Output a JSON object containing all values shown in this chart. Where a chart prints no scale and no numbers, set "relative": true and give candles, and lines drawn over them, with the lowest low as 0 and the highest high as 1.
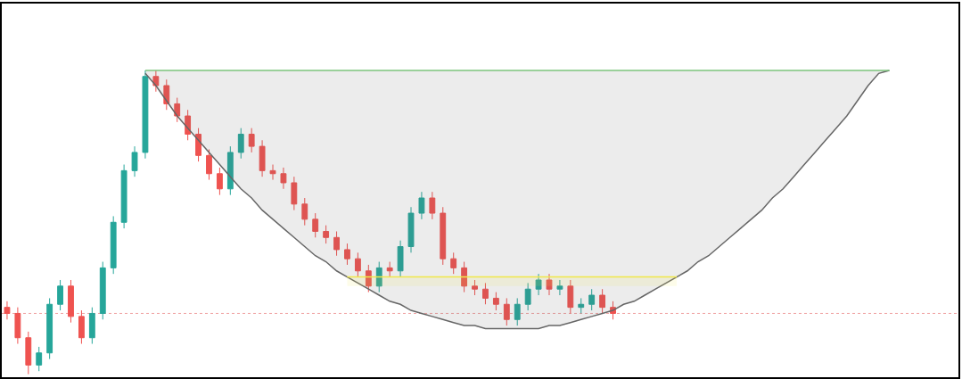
{
  "chart_data": {
    "type": "candlestick",
    "relative": true,
    "grid": false,
    "categories": [
      null,
      null,
      null,
      null,
      null,
      null,
      null,
      null,
      null,
      null,
      null,
      null,
      null,
      null,
      null,
      null,
      null,
      null,
      null,
      null,
      null,
      null,
      null,
      null,
      null,
      null,
      null,
      null,
      null,
      null,
      null,
      null,
      null,
      null,
      null,
      null,
      null,
      null,
      null,
      null,
      null,
      null,
      null,
      null,
      null,
      null,
      null,
      null,
      null,
      null,
      null,
      null,
      null,
      null,
      null,
      null,
      null,
      null,
      null,
      null,
      null,
      null,
      null,
      null,
      null,
      null,
      null,
      null,
      null,
      null,
      null,
      null,
      null,
      null,
      null,
      null,
      null,
      null,
      null,
      null,
      null,
      null,
      null,
      null,
      null,
      null,
      null,
      null,
      null,
      null
    ],
    "ohlc": [
      [
        0.22,
        0.24,
        0.18,
        0.2
      ],
      [
        0.2,
        0.22,
        0.1,
        0.12
      ],
      [
        0.12,
        0.14,
        0.0,
        0.03
      ],
      [
        0.03,
        0.09,
        0.01,
        0.07
      ],
      [
        0.07,
        0.25,
        0.05,
        0.23
      ],
      [
        0.23,
        0.31,
        0.21,
        0.29
      ],
      [
        0.29,
        0.31,
        0.17,
        0.19
      ],
      [
        0.19,
        0.21,
        0.1,
        0.12
      ],
      [
        0.12,
        0.22,
        0.1,
        0.2
      ],
      [
        0.2,
        0.37,
        0.18,
        0.35
      ],
      [
        0.35,
        0.52,
        0.33,
        0.5
      ],
      [
        0.5,
        0.69,
        0.48,
        0.67
      ],
      [
        0.67,
        0.75,
        0.65,
        0.73
      ],
      [
        0.73,
        1.0,
        0.71,
        0.98
      ],
      [
        0.98,
        1.0,
        0.93,
        0.95
      ],
      [
        0.95,
        0.97,
        0.87,
        0.89
      ],
      [
        0.89,
        0.91,
        0.83,
        0.85
      ],
      [
        0.85,
        0.87,
        0.77,
        0.79
      ],
      [
        0.79,
        0.81,
        0.7,
        0.72
      ],
      [
        0.72,
        0.74,
        0.64,
        0.66
      ],
      [
        0.66,
        0.68,
        0.59,
        0.61
      ],
      [
        0.61,
        0.75,
        0.59,
        0.73
      ],
      [
        0.73,
        0.81,
        0.71,
        0.79
      ],
      [
        0.79,
        0.81,
        0.73,
        0.75
      ],
      [
        0.75,
        0.77,
        0.65,
        0.67
      ],
      [
        0.67,
        0.69,
        0.64,
        0.66
      ],
      [
        0.66,
        0.68,
        0.61,
        0.63
      ],
      [
        0.63,
        0.65,
        0.54,
        0.56
      ],
      [
        0.56,
        0.58,
        0.49,
        0.51
      ],
      [
        0.51,
        0.53,
        0.45,
        0.47
      ],
      [
        0.47,
        0.49,
        0.43,
        0.45
      ],
      [
        0.45,
        0.47,
        0.39,
        0.41
      ],
      [
        0.41,
        0.43,
        0.36,
        0.38
      ],
      [
        0.38,
        0.4,
        0.32,
        0.34
      ],
      [
        0.34,
        0.36,
        0.27,
        0.29
      ],
      [
        0.29,
        0.37,
        0.27,
        0.35
      ],
      [
        0.35,
        0.37,
        0.32,
        0.34
      ],
      [
        0.34,
        0.44,
        0.32,
        0.42
      ],
      [
        0.42,
        0.55,
        0.4,
        0.53
      ],
      [
        0.53,
        0.6,
        0.51,
        0.58
      ],
      [
        0.58,
        0.6,
        0.51,
        0.53
      ],
      [
        0.53,
        0.55,
        0.36,
        0.38
      ],
      [
        0.38,
        0.4,
        0.33,
        0.35
      ],
      [
        0.35,
        0.37,
        0.27,
        0.29
      ],
      [
        0.29,
        0.31,
        0.26,
        0.28
      ],
      [
        0.28,
        0.3,
        0.23,
        0.25
      ],
      [
        0.25,
        0.27,
        0.21,
        0.23
      ],
      [
        0.23,
        0.25,
        0.16,
        0.18
      ],
      [
        0.18,
        0.25,
        0.16,
        0.23
      ],
      [
        0.23,
        0.3,
        0.21,
        0.28
      ],
      [
        0.28,
        0.33,
        0.26,
        0.31
      ],
      [
        0.31,
        0.33,
        0.26,
        0.28
      ],
      [
        0.28,
        0.31,
        0.26,
        0.29
      ],
      [
        0.29,
        0.31,
        0.2,
        0.22
      ],
      [
        0.22,
        0.25,
        0.2,
        0.23
      ],
      [
        0.23,
        0.28,
        0.21,
        0.26
      ],
      [
        0.26,
        0.28,
        0.2,
        0.22
      ],
      [
        0.22,
        0.24,
        0.18,
        0.2
      ],
      null,
      null,
      null,
      null,
      null,
      null,
      null,
      null,
      null,
      null,
      null,
      null,
      null,
      null,
      null,
      null,
      null,
      null,
      null,
      null,
      null,
      null,
      null,
      null,
      null,
      null,
      null,
      null,
      null,
      null,
      null,
      null
    ],
    "series": [
      {
        "type": "line",
        "color": "#666666",
        "values": [
          null,
          null,
          null,
          null,
          null,
          null,
          null,
          null,
          null,
          null,
          null,
          null,
          null,
          0.99,
          0.95,
          0.9,
          0.85,
          0.81,
          0.77,
          0.73,
          0.69,
          0.65,
          0.61,
          0.58,
          0.54,
          0.51,
          0.48,
          0.45,
          0.42,
          0.39,
          0.37,
          0.34,
          0.32,
          0.3,
          0.28,
          0.26,
          0.24,
          0.23,
          0.21,
          0.2,
          0.19,
          0.18,
          0.17,
          0.16,
          0.16,
          0.15,
          0.15,
          0.15,
          0.15,
          0.15,
          0.15,
          0.16,
          0.16,
          0.17,
          0.18,
          0.19,
          0.2,
          0.21,
          0.23,
          0.24,
          0.26,
          0.28,
          0.3,
          0.32,
          0.34,
          0.37,
          0.39,
          0.42,
          0.45,
          0.48,
          0.51,
          0.54,
          0.58,
          0.61,
          0.65,
          0.69,
          0.73,
          0.77,
          0.81,
          0.85,
          0.9,
          0.95,
          0.99,
          1.0,
          null,
          null,
          null,
          null,
          null,
          null
        ],
        "lower": [
          null,
          null,
          null,
          null,
          null,
          null,
          null,
          null,
          null,
          null,
          null,
          null,
          null,
          0.99,
          0.95,
          0.9,
          0.85,
          0.81,
          0.77,
          0.73,
          0.69,
          0.65,
          0.61,
          0.58,
          0.54,
          0.51,
          0.48,
          0.45,
          0.42,
          0.39,
          0.37,
          0.34,
          0.32,
          0.3,
          0.28,
          0.26,
          0.24,
          0.23,
          0.21,
          0.2,
          0.19,
          0.18,
          0.17,
          0.16,
          0.16,
          0.15,
          0.15,
          0.15,
          0.15,
          0.15,
          0.15,
          0.16,
          0.16,
          0.17,
          0.18,
          0.19,
          0.2,
          0.21,
          0.23,
          0.24,
          0.26,
          0.28,
          0.3,
          0.32,
          0.34,
          0.37,
          0.39,
          0.42,
          0.45,
          0.48,
          0.51,
          0.54,
          0.58,
          0.61,
          0.65,
          0.69,
          0.73,
          0.77,
          0.81,
          0.85,
          0.9,
          0.95,
          0.99,
          1.0,
          null,
          null,
          null,
          null,
          null,
          null
        ],
        "upper": [
          null,
          null,
          null,
          null,
          null,
          null,
          null,
          null,
          null,
          null,
          null,
          null,
          null,
          1.0,
          1.0,
          1.0,
          1.0,
          1.0,
          1.0,
          1.0,
          1.0,
          1.0,
          1.0,
          1.0,
          1.0,
          1.0,
          1.0,
          1.0,
          1.0,
          1.0,
          1.0,
          1.0,
          1.0,
          1.0,
          1.0,
          1.0,
          1.0,
          1.0,
          1.0,
          1.0,
          1.0,
          1.0,
          1.0,
          1.0,
          1.0,
          1.0,
          1.0,
          1.0,
          1.0,
          1.0,
          1.0,
          1.0,
          1.0,
          1.0,
          1.0,
          1.0,
          1.0,
          1.0,
          1.0,
          1.0,
          1.0,
          1.0,
          1.0,
          1.0,
          1.0,
          1.0,
          1.0,
          1.0,
          1.0,
          1.0,
          1.0,
          1.0,
          1.0,
          1.0,
          1.0,
          1.0,
          1.0,
          1.0,
          1.0,
          1.0,
          1.0,
          1.0,
          1.0,
          1.0,
          null,
          null,
          null,
          null,
          null,
          null
        ]
      },
      {
        "type": "line",
        "color": "#7cc47c",
        "values": [
          null,
          null,
          null,
          null,
          null,
          null,
          null,
          null,
          null,
          null,
          null,
          null,
          null,
          1.0,
          1.0,
          1.0,
          1.0,
          1.0,
          1.0,
          1.0,
          1.0,
          1.0,
          1.0,
          1.0,
          1.0,
          1.0,
          1.0,
          1.0,
          1.0,
          1.0,
          1.0,
          1.0,
          1.0,
          1.0,
          1.0,
          1.0,
          1.0,
          1.0,
          1.0,
          1.0,
          1.0,
          1.0,
          1.0,
          1.0,
          1.0,
          1.0,
          1.0,
          1.0,
          1.0,
          1.0,
          1.0,
          1.0,
          1.0,
          1.0,
          1.0,
          1.0,
          1.0,
          1.0,
          1.0,
          1.0,
          1.0,
          1.0,
          1.0,
          1.0,
          1.0,
          1.0,
          1.0,
          1.0,
          1.0,
          1.0,
          1.0,
          1.0,
          1.0,
          1.0,
          1.0,
          1.0,
          1.0,
          1.0,
          1.0,
          1.0,
          1.0,
          1.0,
          1.0,
          1.0,
          null,
          null,
          null,
          null,
          null,
          null
        ]
      },
      {
        "type": "line",
        "color": "#f0e84a",
        "values": [
          null,
          null,
          null,
          null,
          null,
          null,
          null,
          null,
          null,
          null,
          null,
          null,
          null,
          null,
          null,
          null,
          null,
          null,
          null,
          null,
          null,
          null,
          null,
          null,
          null,
          null,
          null,
          null,
          null,
          null,
          null,
          null,
          0.32,
          0.32,
          0.32,
          0.32,
          0.32,
          0.32,
          0.32,
          0.32,
          0.32,
          0.32,
          0.32,
          0.32,
          0.32,
          0.32,
          0.32,
          0.32,
          0.32,
          0.32,
          0.32,
          0.32,
          0.32,
          0.32,
          0.32,
          0.32,
          0.32,
          0.32,
          0.32,
          0.32,
          0.32,
          0.32,
          0.32,
          0.32,
          null,
          null,
          null,
          null,
          null,
          null,
          null,
          null,
          null,
          null,
          null,
          null,
          null,
          null,
          null,
          null,
          null,
          null,
          null,
          null,
          null,
          null,
          null,
          null,
          null,
          null
        ],
        "lower": [
          null,
          null,
          null,
          null,
          null,
          null,
          null,
          null,
          null,
          null,
          null,
          null,
          null,
          null,
          null,
          null,
          null,
          null,
          null,
          null,
          null,
          null,
          null,
          null,
          null,
          null,
          null,
          null,
          null,
          null,
          null,
          null,
          0.29,
          0.29,
          0.29,
          0.29,
          0.29,
          0.29,
          0.29,
          0.29,
          0.29,
          0.29,
          0.29,
          0.29,
          0.29,
          0.29,
          0.29,
          0.29,
          0.29,
          0.29,
          0.29,
          0.29,
          0.29,
          0.29,
          0.29,
          0.29,
          0.29,
          0.29,
          0.29,
          0.29,
          0.29,
          0.29,
          0.29,
          0.29,
          null,
          null,
          null,
          null,
          null,
          null,
          null,
          null,
          null,
          null,
          null,
          null,
          null,
          null,
          null,
          null,
          null,
          null,
          null,
          null,
          null,
          null,
          null,
          null,
          null,
          null
        ],
        "upper": [
          null,
          null,
          null,
          null,
          null,
          null,
          null,
          null,
          null,
          null,
          null,
          null,
          null,
          null,
          null,
          null,
          null,
          null,
          null,
          null,
          null,
          null,
          null,
          null,
          null,
          null,
          null,
          null,
          null,
          null,
          null,
          null,
          0.32,
          0.32,
          0.32,
          0.32,
          0.32,
          0.32,
          0.32,
          0.32,
          0.32,
          0.32,
          0.32,
          0.32,
          0.32,
          0.32,
          0.32,
          0.32,
          0.32,
          0.32,
          0.32,
          0.32,
          0.32,
          0.32,
          0.32,
          0.32,
          0.32,
          0.32,
          0.32,
          0.32,
          0.32,
          0.32,
          0.32,
          0.32,
          null,
          null,
          null,
          null,
          null,
          null,
          null,
          null,
          null,
          null,
          null,
          null,
          null,
          null,
          null,
          null,
          null,
          null,
          null,
          null,
          null,
          null,
          null,
          null,
          null,
          null
        ]
      }
    ],
    "ref_lines": [
      {
        "axis": "y",
        "value": 0.2,
        "color": "#f0a0a0",
        "line_style": "dotted"
      }
    ]
  }
}
